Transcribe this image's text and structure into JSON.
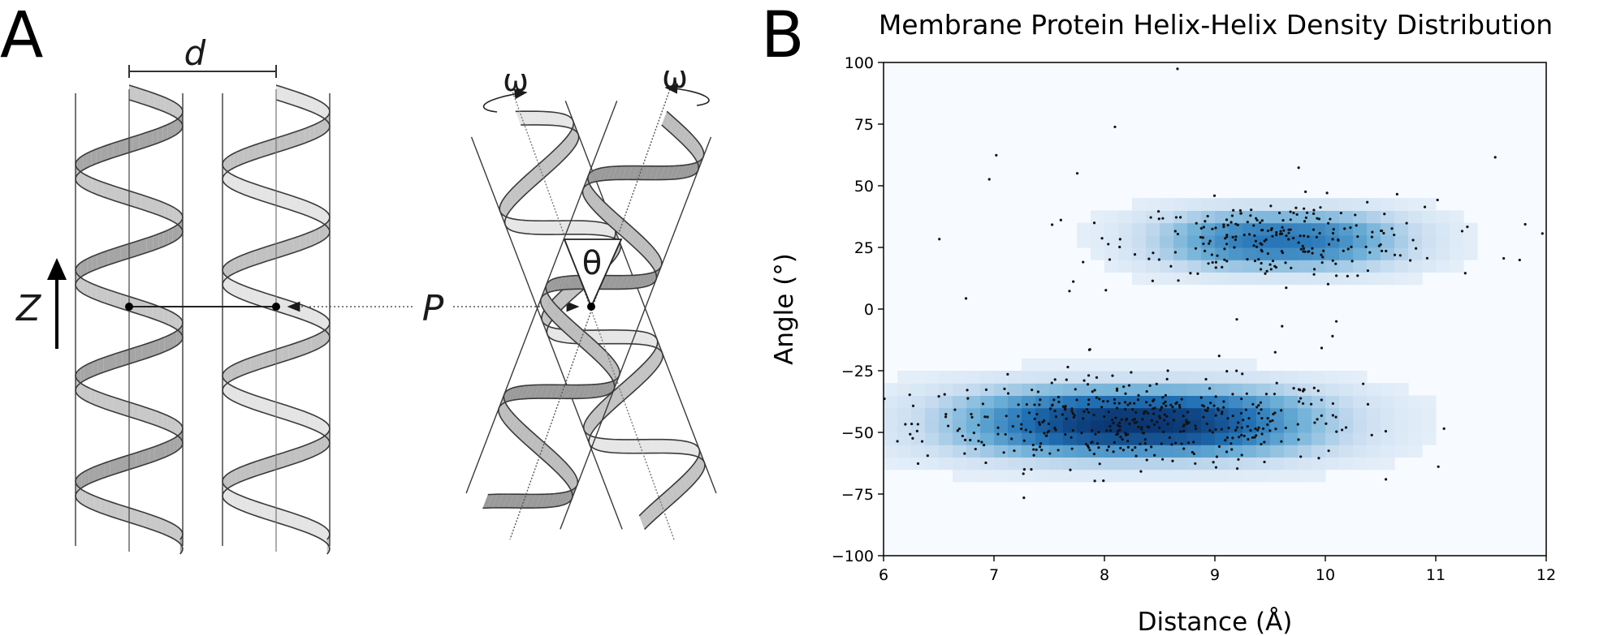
{
  "panel_a": {
    "letter": "A",
    "labels": {
      "d": "d",
      "z": "Z",
      "p": "P",
      "omega": "ω",
      "theta": "θ"
    }
  },
  "panel_b": {
    "letter": "B"
  },
  "chart_data": {
    "type": "heatmap",
    "title": "Membrane Protein Helix-Helix Density Distribution",
    "xlabel": "Distance (Å)",
    "ylabel": "Angle (°)",
    "xlim": [
      6,
      12
    ],
    "ylim": [
      -100,
      100
    ],
    "xticks": [
      6,
      7,
      8,
      9,
      10,
      11,
      12
    ],
    "yticks": [
      -100,
      -75,
      -50,
      -25,
      0,
      25,
      50,
      75,
      100
    ],
    "colormap": "Blues",
    "density_clusters": [
      {
        "x_center": 8.3,
        "y_center": -46,
        "x_spread": 1.25,
        "y_spread": 11,
        "weight": 1.0
      },
      {
        "x_center": 9.6,
        "y_center": 28,
        "x_spread": 0.85,
        "y_spread": 9,
        "weight": 0.72
      }
    ],
    "scatter_clusters": [
      {
        "x_center": 8.3,
        "y_center": -46,
        "x_spread": 1.0,
        "y_spread": 9,
        "count": 430
      },
      {
        "x_center": 9.6,
        "y_center": 28,
        "x_spread": 0.7,
        "y_spread": 8,
        "count": 210
      },
      {
        "x_center": 9.0,
        "y_center": 20,
        "x_spread": 2.2,
        "y_spread": 45,
        "count": 55
      }
    ],
    "point_color": "#111111",
    "density_color": "#08306b"
  }
}
